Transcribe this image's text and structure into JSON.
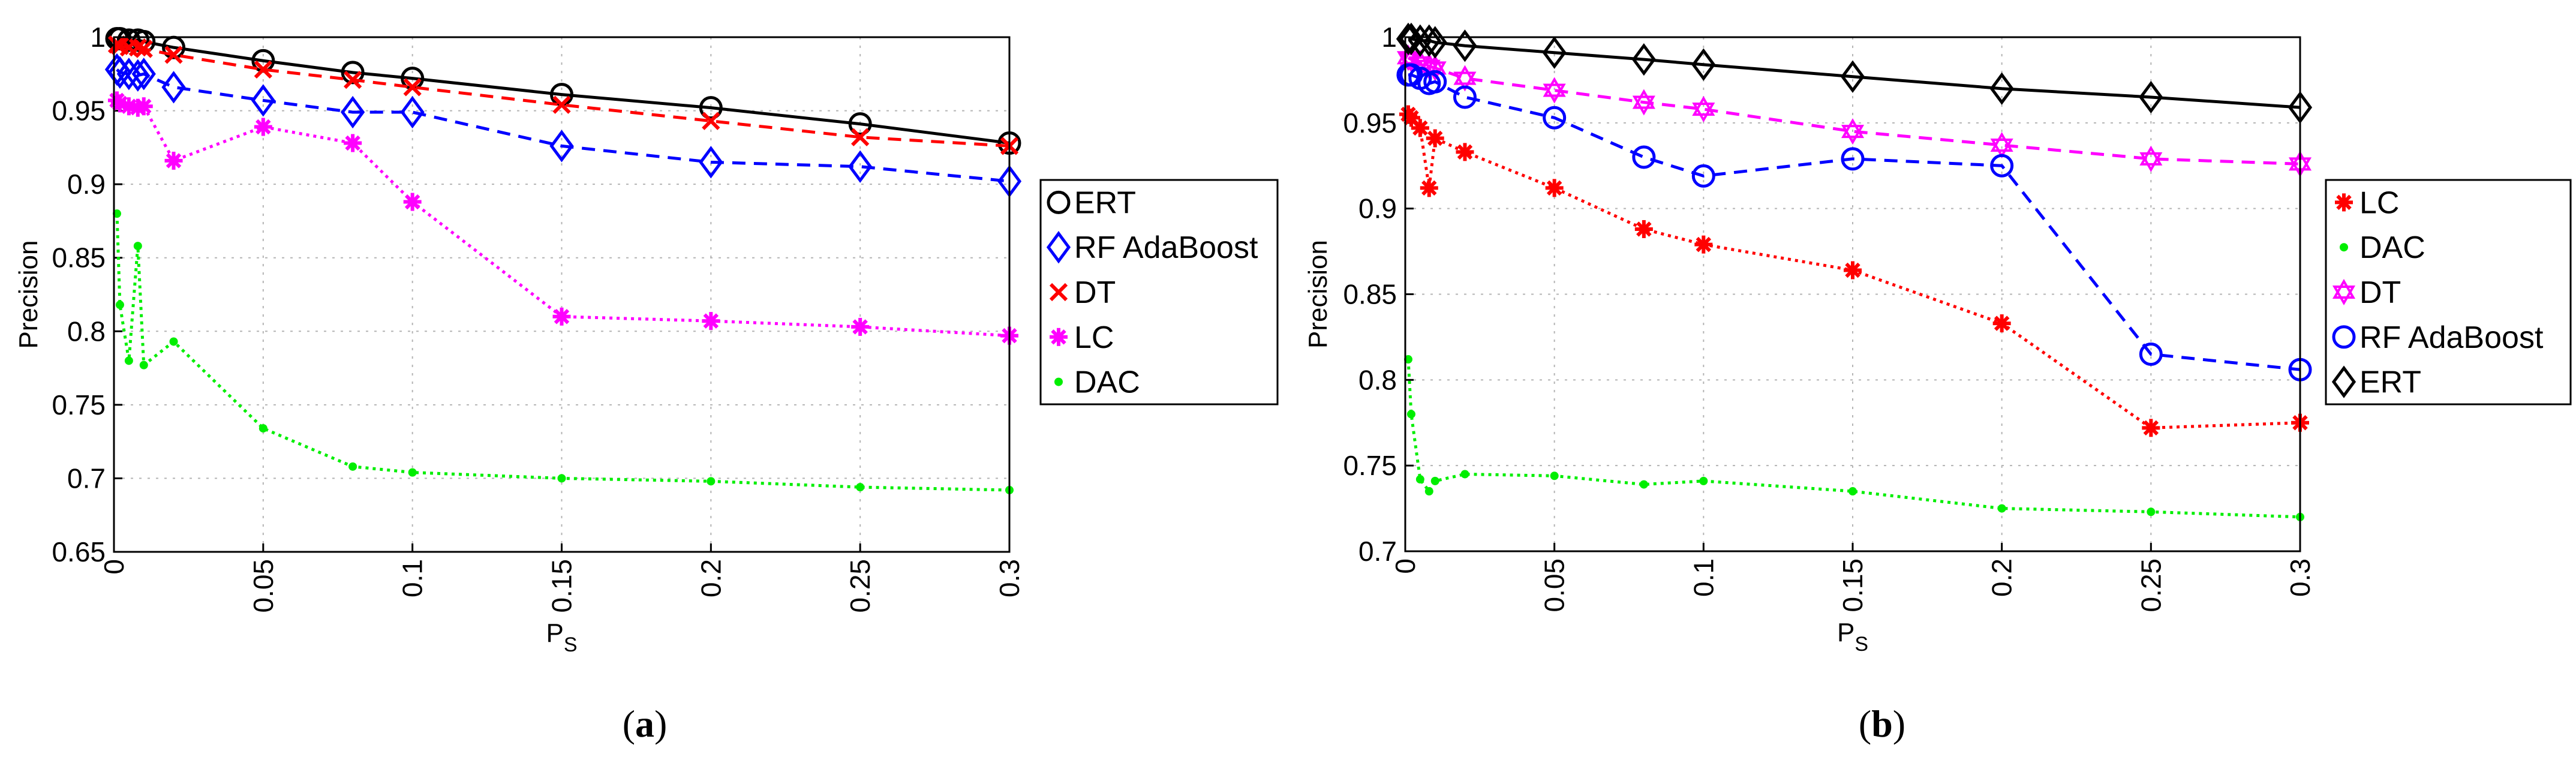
{
  "figure": {
    "caption_a": "a",
    "caption_b": "b",
    "paren_open": "(",
    "paren_close": ")"
  },
  "chart_data": [
    {
      "id": "a",
      "type": "line",
      "xlabel_main": "P",
      "xlabel_sub": "S",
      "ylabel": "Precision",
      "xlim": [
        0,
        0.3
      ],
      "ylim": [
        0.65,
        1.0
      ],
      "grid": true,
      "legend_position": "right",
      "xticks": [
        0,
        0.05,
        0.1,
        0.15,
        0.2,
        0.25,
        0.3
      ],
      "xtick_labels": [
        "0",
        "0.05",
        "0.1",
        "0.15",
        "0.2",
        "0.25",
        "0.3"
      ],
      "yticks": [
        0.65,
        0.7,
        0.75,
        0.8,
        0.85,
        0.9,
        0.95,
        1.0
      ],
      "ytick_labels": [
        "0.65",
        "0.7",
        "0.75",
        "0.8",
        "0.85",
        "0.9",
        "0.95",
        "1"
      ],
      "x": [
        0.001,
        0.002,
        0.005,
        0.008,
        0.01,
        0.02,
        0.05,
        0.08,
        0.1,
        0.15,
        0.2,
        0.25,
        0.3
      ],
      "series": [
        {
          "name": "ERT",
          "color": "#000000",
          "marker": "circle",
          "dash": "solid",
          "values": [
            0.999,
            0.999,
            0.998,
            0.998,
            0.997,
            0.993,
            0.984,
            0.976,
            0.972,
            0.961,
            0.952,
            0.941,
            0.928
          ]
        },
        {
          "name": "RF AdaBoost",
          "color": "#0000ff",
          "marker": "diamond",
          "dash": "dashed",
          "values": [
            0.978,
            0.976,
            0.975,
            0.974,
            0.975,
            0.966,
            0.957,
            0.949,
            0.949,
            0.926,
            0.915,
            0.912,
            0.902
          ]
        },
        {
          "name": "DT",
          "color": "#ff0000",
          "marker": "x",
          "dash": "dashed",
          "values": [
            0.995,
            0.994,
            0.993,
            0.993,
            0.992,
            0.988,
            0.978,
            0.971,
            0.966,
            0.954,
            0.943,
            0.932,
            0.926
          ]
        },
        {
          "name": "LC",
          "color": "#ff00ff",
          "marker": "asterisk",
          "dash": "dotted",
          "values": [
            0.957,
            0.955,
            0.953,
            0.952,
            0.953,
            0.916,
            0.939,
            0.928,
            0.888,
            0.81,
            0.807,
            0.803,
            0.797
          ]
        },
        {
          "name": "DAC",
          "color": "#00ee00",
          "marker": "dot",
          "dash": "dotted",
          "values": [
            0.88,
            0.818,
            0.78,
            0.858,
            0.777,
            0.793,
            0.734,
            0.708,
            0.704,
            0.7,
            0.698,
            0.694,
            0.692
          ]
        }
      ]
    },
    {
      "id": "b",
      "type": "line",
      "xlabel_main": "P",
      "xlabel_sub": "S",
      "ylabel": "Precision",
      "xlim": [
        0,
        0.3
      ],
      "ylim": [
        0.7,
        1.0
      ],
      "grid": true,
      "legend_position": "right",
      "xticks": [
        0,
        0.05,
        0.1,
        0.15,
        0.2,
        0.25,
        0.3
      ],
      "xtick_labels": [
        "0",
        "0.05",
        "0.1",
        "0.15",
        "0.2",
        "0.25",
        "0.3"
      ],
      "yticks": [
        0.7,
        0.75,
        0.8,
        0.85,
        0.9,
        0.95,
        1.0
      ],
      "ytick_labels": [
        "0.7",
        "0.75",
        "0.8",
        "0.85",
        "0.9",
        "0.95",
        "1"
      ],
      "x": [
        0.001,
        0.002,
        0.005,
        0.008,
        0.01,
        0.02,
        0.05,
        0.08,
        0.1,
        0.15,
        0.2,
        0.25,
        0.3
      ],
      "series": [
        {
          "name": "LC",
          "color": "#ff0000",
          "marker": "asterisk",
          "dash": "dotted",
          "values": [
            0.955,
            0.953,
            0.947,
            0.912,
            0.941,
            0.933,
            0.912,
            0.888,
            0.879,
            0.864,
            0.833,
            0.772,
            0.775
          ]
        },
        {
          "name": "DAC",
          "color": "#00ee00",
          "marker": "dot",
          "dash": "dotted",
          "values": [
            0.812,
            0.78,
            0.742,
            0.735,
            0.741,
            0.745,
            0.744,
            0.739,
            0.741,
            0.735,
            0.725,
            0.723,
            0.72
          ]
        },
        {
          "name": "DT",
          "color": "#ff00ff",
          "marker": "hexagram",
          "dash": "dashed",
          "values": [
            0.988,
            0.987,
            0.985,
            0.983,
            0.982,
            0.976,
            0.969,
            0.962,
            0.958,
            0.945,
            0.937,
            0.929,
            0.926
          ]
        },
        {
          "name": "RF AdaBoost",
          "color": "#0000ff",
          "marker": "circle",
          "dash": "dashed",
          "values": [
            0.978,
            0.978,
            0.976,
            0.973,
            0.974,
            0.965,
            0.953,
            0.93,
            0.919,
            0.929,
            0.925,
            0.815,
            0.806
          ]
        },
        {
          "name": "ERT",
          "color": "#000000",
          "marker": "diamond",
          "dash": "solid",
          "values": [
            0.999,
            0.999,
            0.998,
            0.998,
            0.997,
            0.995,
            0.991,
            0.987,
            0.984,
            0.977,
            0.97,
            0.965,
            0.959
          ]
        }
      ]
    }
  ]
}
